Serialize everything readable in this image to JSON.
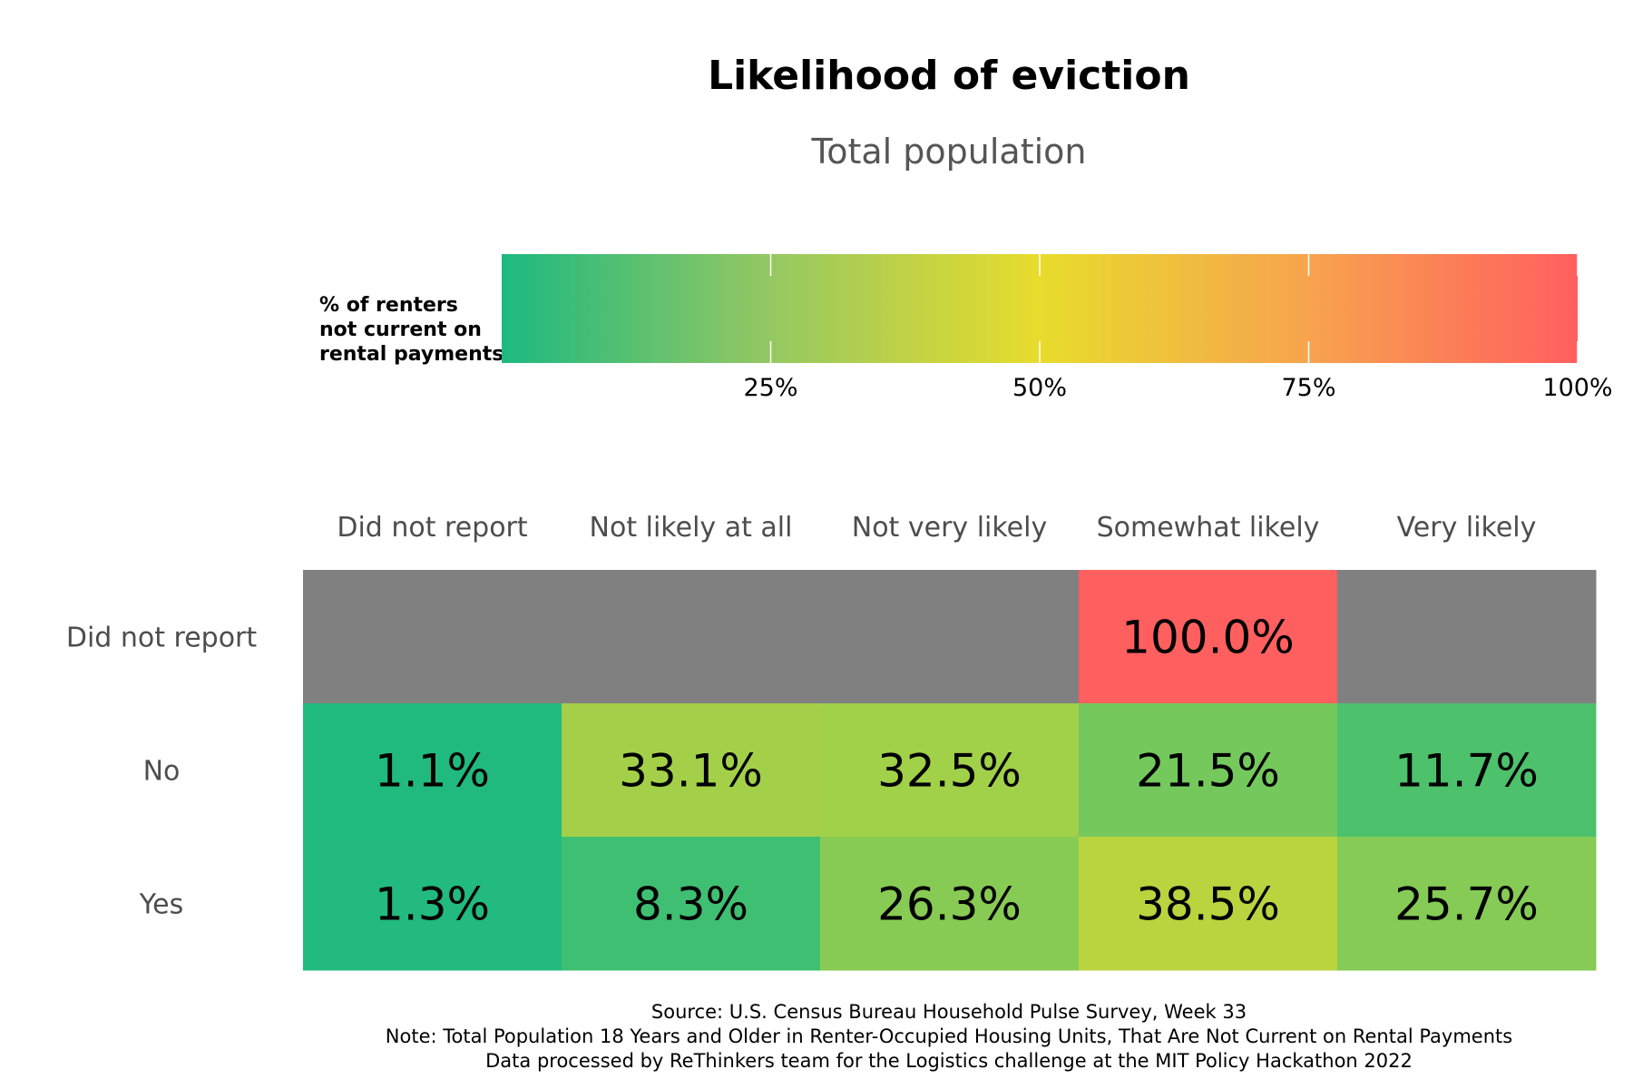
{
  "chart_data": {
    "type": "heatmap",
    "title": "Likelihood of eviction",
    "subtitle": "Total population",
    "legend": {
      "title_lines": [
        "% of renters",
        "not current on",
        "rental payments"
      ],
      "ticks": [
        {
          "value": 25,
          "label": "25%"
        },
        {
          "value": 50,
          "label": "50%"
        },
        {
          "value": 75,
          "label": "75%"
        },
        {
          "value": 100,
          "label": "100%"
        }
      ],
      "range": [
        0,
        100
      ],
      "colors": {
        "low": "#1db980",
        "mid": "#e8dc2c",
        "high": "#ff5f5f",
        "missing": "#808080"
      },
      "placement": "top"
    },
    "columns": [
      "Did not report",
      "Not likely at all",
      "Not very likely",
      "Somewhat likely",
      "Very likely"
    ],
    "rows": [
      "Did not report",
      "No",
      "Yes"
    ],
    "cells": [
      [
        {
          "value": null,
          "label": ""
        },
        {
          "value": null,
          "label": ""
        },
        {
          "value": null,
          "label": ""
        },
        {
          "value": 100.0,
          "label": "100.0%"
        },
        {
          "value": null,
          "label": ""
        }
      ],
      [
        {
          "value": 1.1,
          "label": "1.1%"
        },
        {
          "value": 33.1,
          "label": "33.1%"
        },
        {
          "value": 32.5,
          "label": "32.5%"
        },
        {
          "value": 21.5,
          "label": "21.5%"
        },
        {
          "value": 11.7,
          "label": "11.7%"
        }
      ],
      [
        {
          "value": 1.3,
          "label": "1.3%"
        },
        {
          "value": 8.3,
          "label": "8.3%"
        },
        {
          "value": 26.3,
          "label": "26.3%"
        },
        {
          "value": 38.5,
          "label": "38.5%"
        },
        {
          "value": 25.7,
          "label": "25.7%"
        }
      ]
    ],
    "caption": [
      "Source: U.S. Census Bureau Household Pulse Survey, Week 33",
      "Note: Total Population 18 Years and Older in Renter-Occupied Housing Units, That Are Not Current on Rental Payments",
      "Data processed by ReThinkers team for the Logistics challenge at the MIT Policy Hackathon 2022"
    ]
  }
}
